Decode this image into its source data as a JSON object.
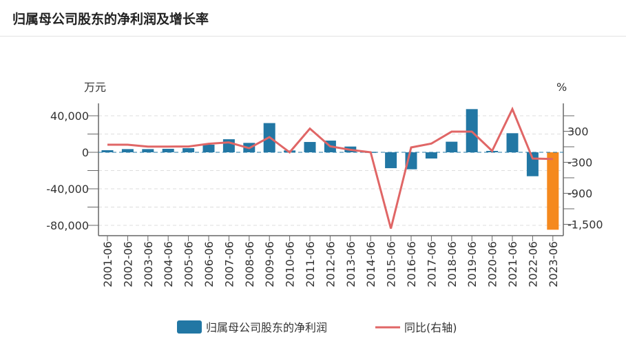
{
  "header": {
    "title": "归属母公司股东的净利润及增长率"
  },
  "chart_data": {
    "type": "bar",
    "title": "归属母公司股东的净利润及增长率",
    "left_unit": "万元",
    "right_unit": "%",
    "categories": [
      "2001-06",
      "2002-06",
      "2003-06",
      "2004-06",
      "2005-06",
      "2006-06",
      "2007-06",
      "2008-06",
      "2009-06",
      "2010-06",
      "2011-06",
      "2012-06",
      "2013-06",
      "2014-06",
      "2015-06",
      "2016-06",
      "2017-06",
      "2018-06",
      "2019-06",
      "2020-06",
      "2021-06",
      "2022-06",
      "2023-06"
    ],
    "left_ticks": [
      {
        "v": 40000,
        "label": "40,000"
      },
      {
        "v": 0,
        "label": "0"
      },
      {
        "v": -40000,
        "label": "-40,000"
      },
      {
        "v": -80000,
        "label": "-80,000"
      }
    ],
    "right_ticks": [
      {
        "v": 300,
        "label": "300"
      },
      {
        "v": -300,
        "label": "-300"
      },
      {
        "v": -900,
        "label": "-900"
      },
      {
        "v": -1500,
        "label": "-1,500"
      }
    ],
    "series": [
      {
        "name": "归属母公司股东的净利润",
        "type": "bar",
        "axis": "left",
        "color": "#2277a4",
        "highlight_last_color": "#f5891e",
        "values": [
          2300,
          3500,
          3500,
          3800,
          4500,
          8300,
          14300,
          10300,
          32000,
          2000,
          11300,
          12800,
          6300,
          500,
          -17400,
          -18600,
          -6800,
          11600,
          47300,
          1500,
          20900,
          -26200,
          -84800
        ]
      },
      {
        "name": "同比(右轴)",
        "type": "line",
        "axis": "right",
        "color": "#e06666",
        "values": [
          40,
          40,
          4,
          4,
          5,
          58,
          85,
          -27,
          187,
          -107,
          351,
          9,
          -58,
          -107,
          -1582,
          -13,
          62,
          293,
          293,
          -80,
          729,
          -227,
          -236
        ]
      }
    ],
    "grid": true,
    "legend": "bottom"
  }
}
